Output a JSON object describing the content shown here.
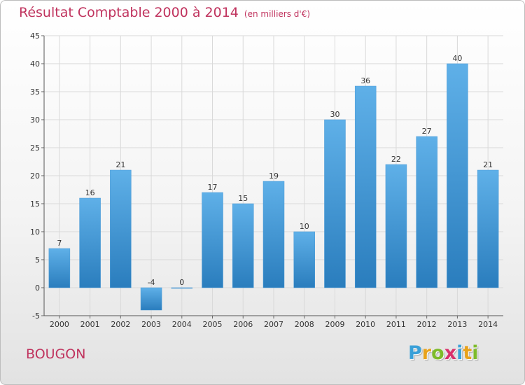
{
  "title": "Résultat Comptable 2000 à 2014",
  "unit": "(en milliers d'€)",
  "commune": "BOUGON",
  "logo_letters": [
    {
      "ch": "P",
      "color": "#3aa0d8"
    },
    {
      "ch": "r",
      "color": "#e8a21b"
    },
    {
      "ch": "o",
      "color": "#7dbb2a"
    },
    {
      "ch": "x",
      "color": "#d9306b"
    },
    {
      "ch": "i",
      "color": "#3aa0d8"
    },
    {
      "ch": "t",
      "color": "#e8a21b"
    },
    {
      "ch": "i",
      "color": "#7dbb2a"
    }
  ],
  "colors": {
    "accent": "#c0335e",
    "bar_light": "#5fb0e8",
    "bar_dark": "#2a7dbd",
    "grid": "#d9d9d9"
  },
  "chart_data": {
    "type": "bar",
    "categories": [
      "2000",
      "2001",
      "2002",
      "2003",
      "2004",
      "2005",
      "2006",
      "2007",
      "2008",
      "2009",
      "2010",
      "2011",
      "2012",
      "2013",
      "2014"
    ],
    "values": [
      7,
      16,
      21,
      -4,
      0,
      17,
      15,
      19,
      10,
      30,
      36,
      22,
      27,
      40,
      21
    ],
    "data_labels": [
      "7",
      "16",
      "21",
      "-4",
      "0",
      "17",
      "15",
      "19",
      "10",
      "30",
      "36",
      "22",
      "27",
      "40",
      "21"
    ],
    "ylim": [
      -5,
      45
    ],
    "yticks": [
      -5,
      0,
      5,
      10,
      15,
      20,
      25,
      30,
      35,
      40,
      45
    ],
    "grid": true,
    "title": "Résultat Comptable 2000 à 2014",
    "xlabel": "",
    "ylabel": ""
  }
}
